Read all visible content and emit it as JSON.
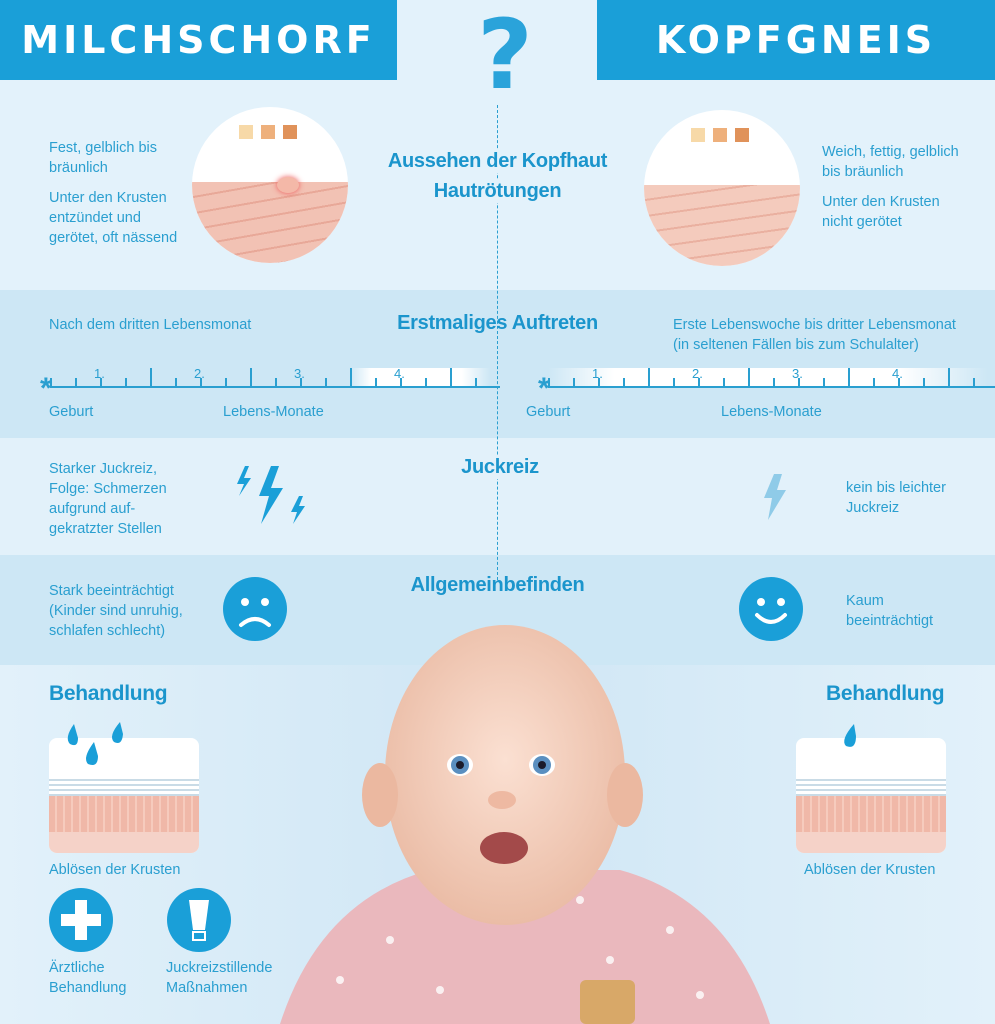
{
  "header": {
    "left_title": "MILCHSCHORF",
    "right_title": "KOPFGNEIS",
    "center_symbol": "?"
  },
  "sections": {
    "appearance": {
      "title_line1": "Aussehen der Kopfhaut",
      "title_line2": "Hautrötungen",
      "left_text1": "Fest, gelblich bis bräunlich",
      "left_text2": "Unter den Krusten entzündet und gerötet, oft nässend",
      "right_text1": "Weich, fettig, gelblich bis bräunlich",
      "right_text2": "Unter den Krusten nicht gerötet",
      "swatch_colors": [
        "#f7d9a8",
        "#eeb07c",
        "#e0925a"
      ]
    },
    "onset": {
      "title": "Erstmaliges Auftreten",
      "left_text": "Nach dem dritten Lebensmonat",
      "right_text1": "Erste Lebenswoche bis dritter Lebensmonat",
      "right_text2": "(in seltenen Fällen bis zum Schulalter)",
      "axis_start": "Geburt",
      "axis_label": "Lebens-Monate",
      "month_labels": [
        "1.",
        "2.",
        "3.",
        "4."
      ],
      "left_highlight_months": [
        3,
        4
      ],
      "right_highlight_months": [
        0,
        4
      ]
    },
    "itch": {
      "title": "Juckreiz",
      "left_text": "Starker Juckreiz, Folge: Schmerzen aufgrund auf-gekratzter Stellen",
      "right_text": "kein bis leichter Juckreiz"
    },
    "wellbeing": {
      "title": "Allgemeinbefinden",
      "left_text": "Stark beeinträchtigt (Kinder sind unruhig, schlafen schlecht)",
      "right_text": "Kaum beeinträchtigt"
    },
    "treatment": {
      "left_title": "Behandlung",
      "right_title": "Behandlung",
      "left_caption": "Ablösen der Krusten",
      "right_caption": "Ablösen der Krusten",
      "medical": "Ärztliche Behandlung",
      "itch_relief": "Juckreizstillende Maßnahmen"
    }
  },
  "colors": {
    "accent": "#1a9fd8",
    "text": "#2a9fd0",
    "band_dark": "#cde7f5",
    "band_light": "#e2f1fa"
  }
}
